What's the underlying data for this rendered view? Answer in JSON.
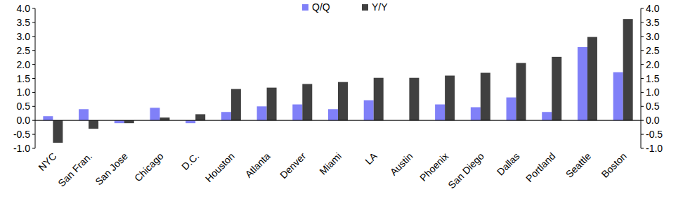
{
  "chart_data": {
    "type": "bar",
    "categories": [
      "NYC",
      "San Fran.",
      "San Jose",
      "Chicago",
      "D.C.",
      "Houston",
      "Atlanta",
      "Denver",
      "Miami",
      "LA",
      "Austin",
      "Phoenix",
      "San Diego",
      "Dallas",
      "Portland",
      "Seattle",
      "Boston"
    ],
    "series": [
      {
        "name": "Q/Q",
        "color": "#8080f8",
        "values": [
          0.15,
          0.4,
          -0.1,
          0.45,
          -0.1,
          0.3,
          0.5,
          0.57,
          0.4,
          0.72,
          0.0,
          0.57,
          0.47,
          0.82,
          0.3,
          2.62,
          1.72
        ]
      },
      {
        "name": "Y/Y",
        "color": "#404040",
        "values": [
          -0.8,
          -0.3,
          -0.1,
          0.1,
          0.22,
          1.12,
          1.17,
          1.3,
          1.37,
          1.52,
          1.52,
          1.6,
          1.7,
          2.05,
          2.27,
          2.98,
          3.62
        ]
      }
    ],
    "ylim": [
      -1,
      4
    ],
    "yticks": [
      {
        "value": -1,
        "label": "-1.0"
      },
      {
        "value": -0.5,
        "label": "-0.5"
      },
      {
        "value": 0,
        "label": "0.0"
      },
      {
        "value": 0.5,
        "label": "0.5"
      },
      {
        "value": 1,
        "label": "1.0"
      },
      {
        "value": 1.5,
        "label": "1.5"
      },
      {
        "value": 2,
        "label": "2.0"
      },
      {
        "value": 2.5,
        "label": "2.5"
      },
      {
        "value": 3,
        "label": "3.0"
      },
      {
        "value": 3.5,
        "label": "3.5"
      },
      {
        "value": 4,
        "label": "4.0"
      }
    ],
    "grid": false,
    "legend": "top"
  }
}
